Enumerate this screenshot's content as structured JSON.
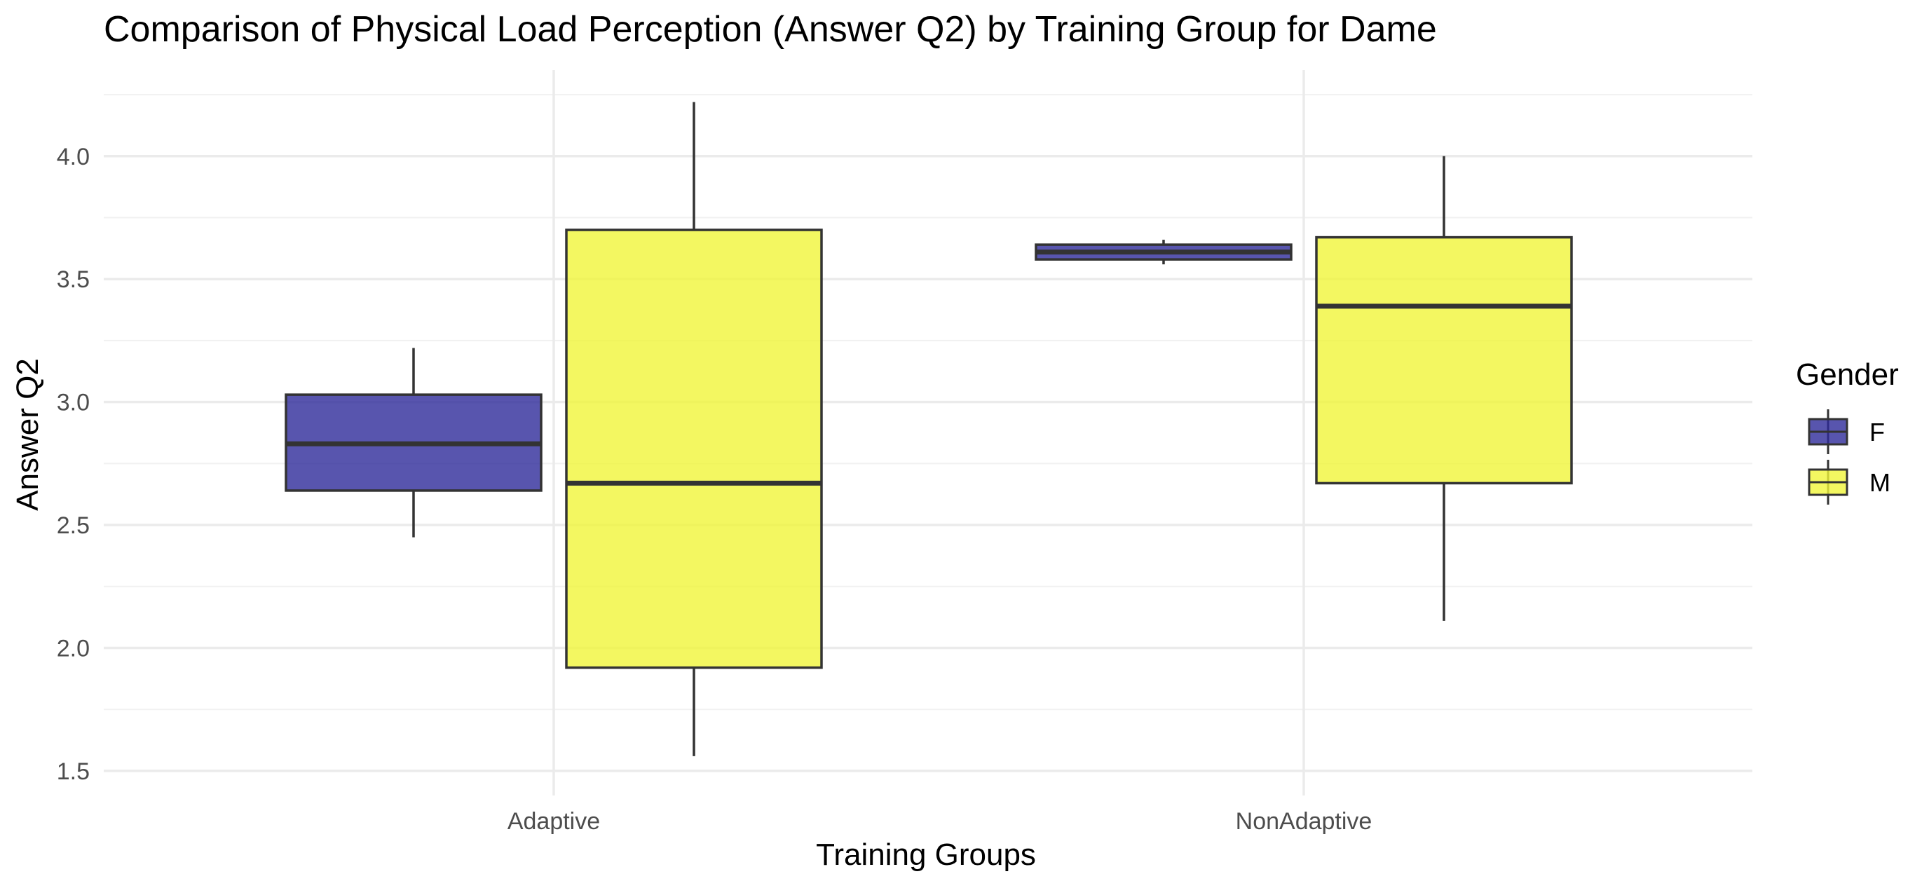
{
  "chart_data": {
    "type": "box",
    "title": "Comparison of Physical Load Perception (Answer Q2) by Training Group for Dame",
    "xlabel": "Training Groups",
    "ylabel": "Answer Q2",
    "categories": [
      "Adaptive",
      "NonAdaptive"
    ],
    "ylim": [
      1.4,
      4.35
    ],
    "yticks": [
      "1.5",
      "2.0",
      "2.5",
      "3.0",
      "3.5",
      "4.0"
    ],
    "legend": {
      "title": "Gender",
      "position": "right",
      "entries": [
        "F",
        "M"
      ]
    },
    "grid": true,
    "series": [
      {
        "name": "F",
        "color": "#2E2A9A",
        "boxes": [
          {
            "category": "Adaptive",
            "whisker_low": 2.45,
            "q1": 2.64,
            "median": 2.83,
            "q3": 3.03,
            "whisker_high": 3.22
          },
          {
            "category": "NonAdaptive",
            "whisker_low": 3.56,
            "q1": 3.58,
            "median": 3.61,
            "q3": 3.64,
            "whisker_high": 3.66
          }
        ]
      },
      {
        "name": "M",
        "color": "#F0F53A",
        "boxes": [
          {
            "category": "Adaptive",
            "whisker_low": 1.56,
            "q1": 1.92,
            "median": 2.67,
            "q3": 3.7,
            "whisker_high": 4.22
          },
          {
            "category": "NonAdaptive",
            "whisker_low": 2.11,
            "q1": 2.67,
            "median": 3.39,
            "q3": 3.67,
            "whisker_high": 4.0
          }
        ]
      }
    ]
  }
}
